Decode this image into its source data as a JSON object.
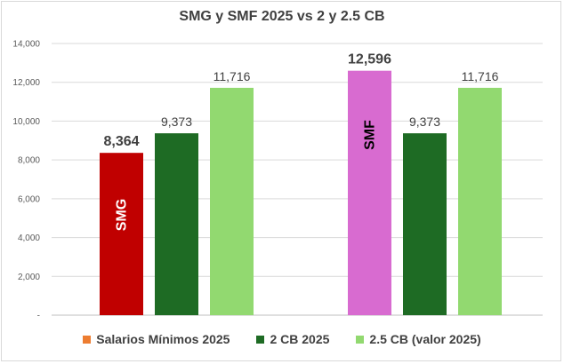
{
  "chart_data": {
    "type": "bar",
    "title": "SMG y SMF 2025  vs 2 y 2.5 CB",
    "ylim": [
      0,
      14000
    ],
    "y_ticks": [
      "-",
      "2,000",
      "4,000",
      "6,000",
      "8,000",
      "10,000",
      "12,000",
      "14,000"
    ],
    "y_tick_values": [
      0,
      2000,
      4000,
      6000,
      8000,
      10000,
      12000,
      14000
    ],
    "groups": [
      "SMG",
      "SMF"
    ],
    "series": [
      {
        "name": "Salarios Mínimos 2025",
        "color": "#ed7d31"
      },
      {
        "name": "2 CB 2025",
        "color": "#1e6b24"
      },
      {
        "name": "2.5 CB (valor 2025)",
        "color": "#92d970"
      }
    ],
    "bars": [
      {
        "group": "SMG",
        "series": "Salarios Mínimos 2025",
        "value": 8364,
        "label": "8,364",
        "color": "#c00000",
        "inner_text": "SMG",
        "inner_color": "#ffffff",
        "label_bold": true
      },
      {
        "group": "SMG",
        "series": "2 CB 2025",
        "value": 9373,
        "label": "9,373",
        "color": "#1e6b24",
        "inner_text": "",
        "inner_color": "",
        "label_bold": false
      },
      {
        "group": "SMG",
        "series": "2.5 CB (valor 2025)",
        "value": 11716,
        "label": "11,716",
        "color": "#92d970",
        "inner_text": "",
        "inner_color": "",
        "label_bold": false
      },
      {
        "group": "SMF",
        "series": "Salarios Mínimos 2025",
        "value": 12596,
        "label": "12,596",
        "color": "#d86bd0",
        "inner_text": "SMF",
        "inner_color": "#000000",
        "label_bold": true
      },
      {
        "group": "SMF",
        "series": "2 CB 2025",
        "value": 9373,
        "label": "9,373",
        "color": "#1e6b24",
        "inner_text": "",
        "inner_color": "",
        "label_bold": false
      },
      {
        "group": "SMF",
        "series": "2.5 CB (valor 2025)",
        "value": 11716,
        "label": "11,716",
        "color": "#92d970",
        "inner_text": "",
        "inner_color": "",
        "label_bold": false
      }
    ],
    "legend_position": "bottom",
    "grid": true
  }
}
